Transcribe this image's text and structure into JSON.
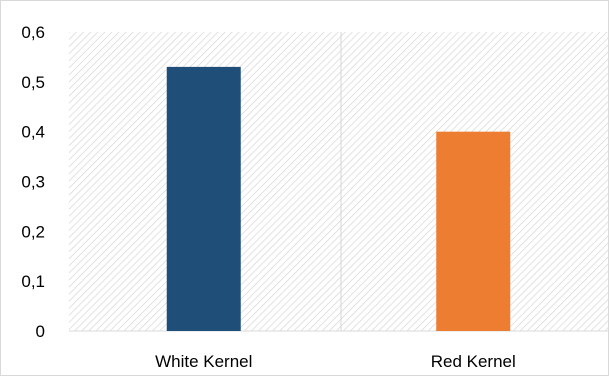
{
  "chart_data": {
    "type": "bar",
    "categories": [
      "White Kernel",
      "Red Kernel"
    ],
    "values": [
      0.53,
      0.4
    ],
    "bar_colors": [
      "#1F4E79",
      "#ED7D31"
    ],
    "y_ticks": [
      "0",
      "0,1",
      "0,2",
      "0,3",
      "0,4",
      "0,5",
      "0,6"
    ],
    "ylim": [
      0,
      0.6
    ],
    "plot_background": "hatched-light-gray",
    "category_separator": true,
    "grid": false,
    "legend": "none",
    "title": "",
    "xlabel": "",
    "ylabel": ""
  }
}
